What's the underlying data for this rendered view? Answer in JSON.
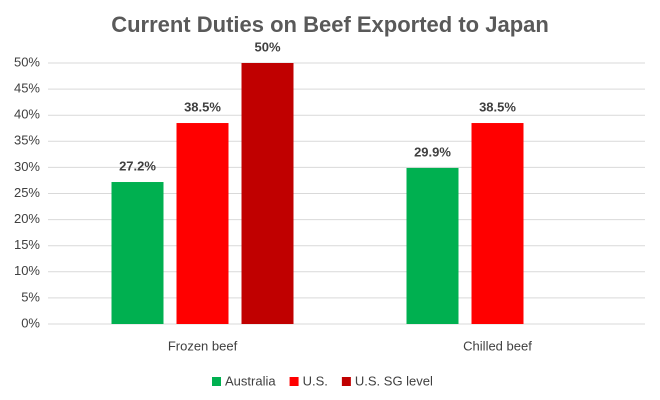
{
  "chart_data": {
    "type": "bar",
    "title": "Current Duties on Beef Exported to Japan",
    "categories": [
      "Frozen beef",
      "Chilled beef"
    ],
    "series": [
      {
        "name": "Australia",
        "color": "#00b050",
        "values": [
          27.2,
          29.9
        ],
        "value_labels": [
          "27.2%",
          "29.9%"
        ]
      },
      {
        "name": "U.S.",
        "color": "#ff0000",
        "values": [
          38.5,
          38.5
        ],
        "value_labels": [
          "38.5%",
          "38.5%"
        ]
      },
      {
        "name": "U.S. SG level",
        "color": "#c00000",
        "values": [
          50,
          null
        ],
        "value_labels": [
          "50%",
          null
        ]
      }
    ],
    "ylim": [
      0,
      50
    ],
    "yticks": [
      {
        "value": 0,
        "label": "0%"
      },
      {
        "value": 5,
        "label": "5%"
      },
      {
        "value": 10,
        "label": "10%"
      },
      {
        "value": 15,
        "label": "15%"
      },
      {
        "value": 20,
        "label": "20%"
      },
      {
        "value": 25,
        "label": "25%"
      },
      {
        "value": 30,
        "label": "30%"
      },
      {
        "value": 35,
        "label": "35%"
      },
      {
        "value": 40,
        "label": "40%"
      },
      {
        "value": 45,
        "label": "45%"
      },
      {
        "value": 50,
        "label": "50%"
      }
    ],
    "grid": true,
    "legend": "bottom"
  }
}
